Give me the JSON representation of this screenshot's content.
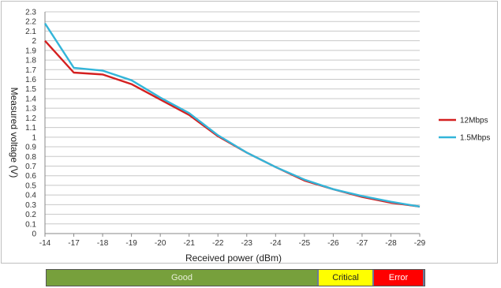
{
  "chart_data": {
    "type": "line",
    "categories": [
      "-14",
      "-17",
      "-18",
      "-19",
      "-20",
      "-21",
      "-22",
      "-23",
      "-24",
      "-25",
      "-26",
      "-27",
      "-28",
      "-29"
    ],
    "series": [
      {
        "name": "12Mbps",
        "color": "#d42020",
        "values": [
          2.0,
          1.67,
          1.65,
          1.55,
          1.39,
          1.23,
          1.01,
          0.84,
          0.69,
          0.55,
          0.46,
          0.38,
          0.32,
          0.28
        ]
      },
      {
        "name": "1.5Mbps",
        "color": "#33b5d9",
        "values": [
          2.18,
          1.72,
          1.69,
          1.59,
          1.41,
          1.25,
          1.02,
          0.84,
          0.69,
          0.56,
          0.46,
          0.39,
          0.33,
          0.28
        ]
      }
    ],
    "xlabel": "Received power (dBm)",
    "ylabel": "Measured voltage (V)",
    "ylim": [
      0,
      2.3
    ],
    "ytick_step": 0.1,
    "grid": true,
    "legend_position": "right"
  },
  "status_bar": {
    "good_label": "Good",
    "critical_label": "Critical",
    "error_label": "Error"
  }
}
